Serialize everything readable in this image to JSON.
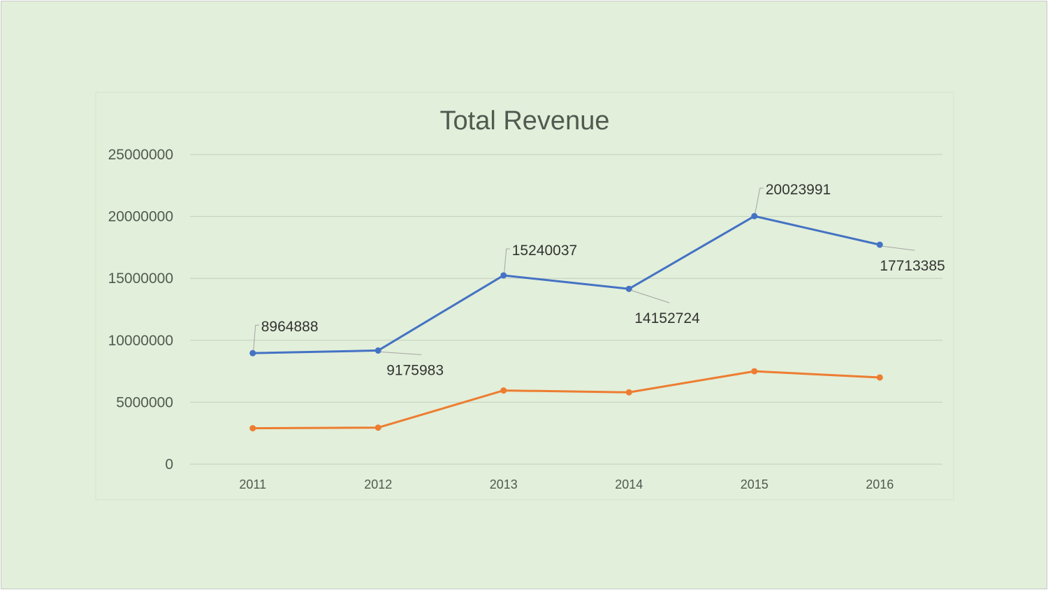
{
  "chart_data": {
    "type": "line",
    "title": "Total Revenue",
    "xlabel": "",
    "ylabel": "",
    "categories": [
      "2011",
      "2012",
      "2013",
      "2014",
      "2015",
      "2016"
    ],
    "ylim": [
      0,
      25000000
    ],
    "yticks": [
      "0",
      "5000000",
      "10000000",
      "15000000",
      "20000000",
      "25000000"
    ],
    "grid": true,
    "legend": "none",
    "series": [
      {
        "values": [
          8964888,
          9175983,
          15240037,
          14152724,
          20023991,
          17713385
        ],
        "color": "#4472c4",
        "data_labels": [
          "8964888",
          "9175983",
          "15240037",
          "14152724",
          "20023991",
          "17713385"
        ]
      },
      {
        "values": [
          2900000,
          2950000,
          5950000,
          5800000,
          7500000,
          7000000
        ],
        "color": "#ed7d31"
      }
    ],
    "colors": {
      "background": "#e2efda",
      "gridline": "#c3cfbe",
      "text": "#505a50"
    }
  }
}
